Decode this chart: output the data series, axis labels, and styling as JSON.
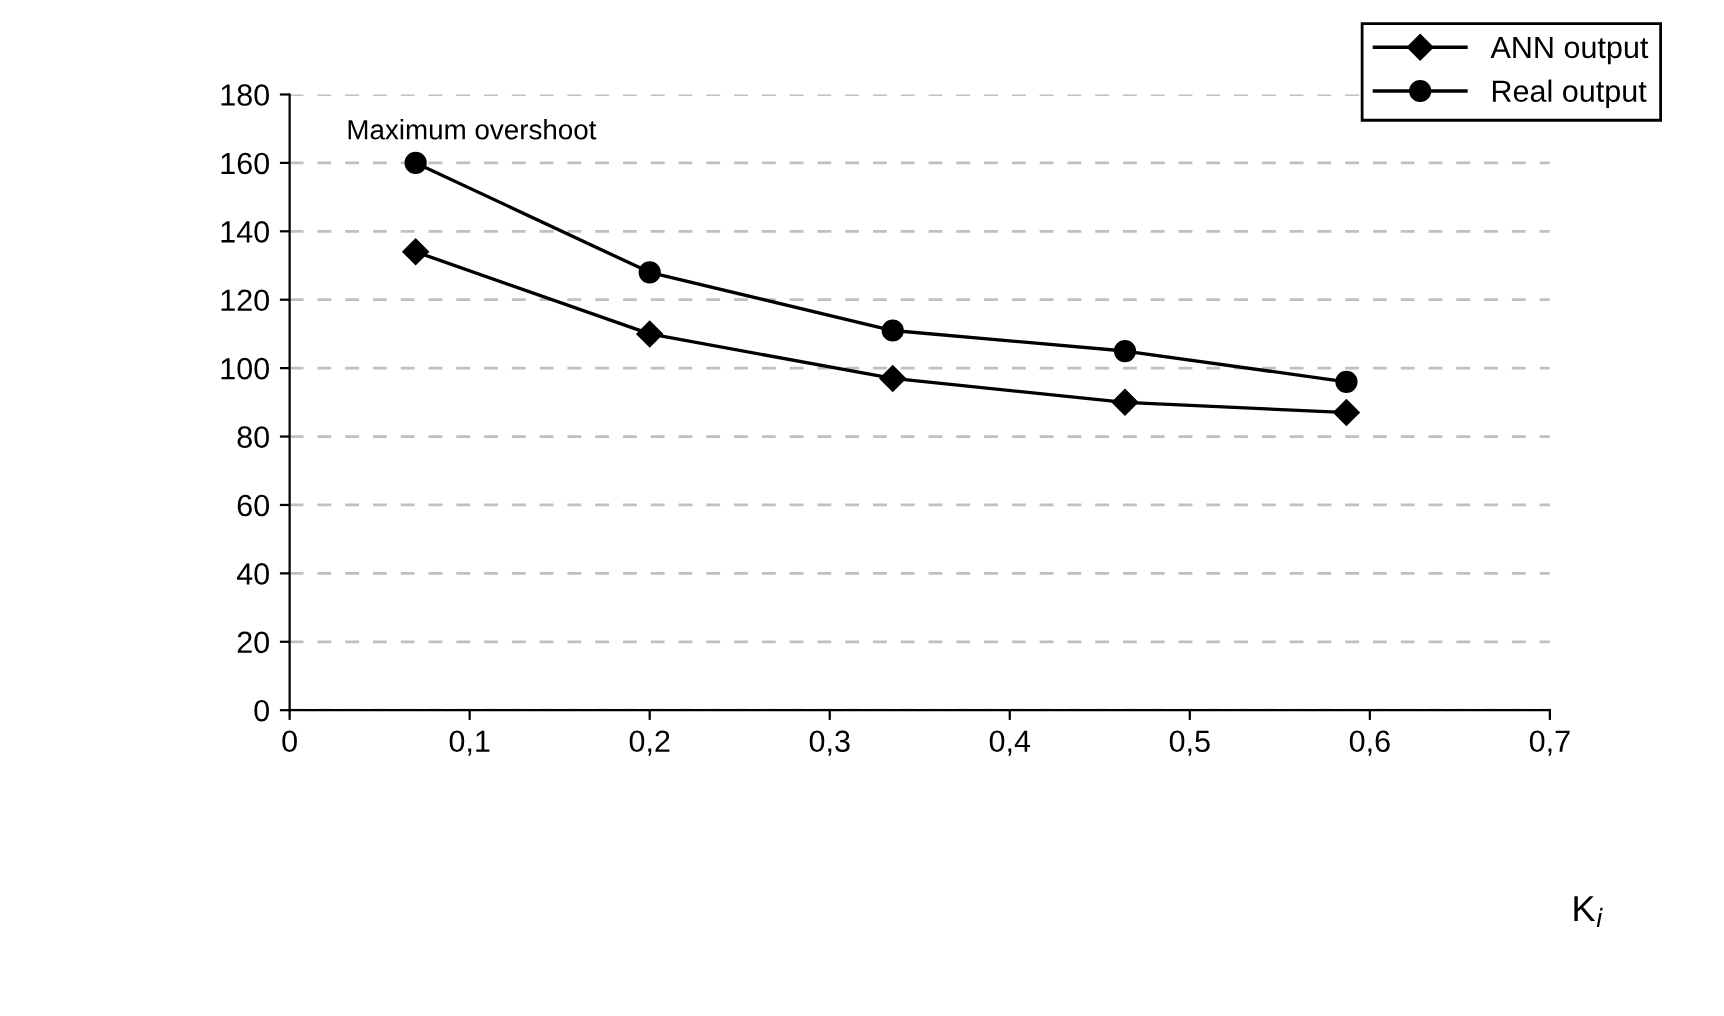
{
  "chart_data": {
    "type": "line",
    "xlabel": "K$_{i}$",
    "annotations": [
      "Maximum overshoot"
    ],
    "xlim": [
      0,
      0.7
    ],
    "xticks": [
      0,
      {
        "value": 0.1,
        "label": "0,1"
      },
      {
        "value": 0.2,
        "label": "0,2"
      },
      {
        "value": 0.3,
        "label": "0,3"
      },
      {
        "value": 0.4,
        "label": "0,4"
      },
      {
        "value": 0.5,
        "label": "0,5"
      },
      {
        "value": 0.6,
        "label": "0,6"
      },
      {
        "value": 0.7,
        "label": "0,7"
      }
    ],
    "ylim": [
      0,
      180
    ],
    "yticks": [
      0,
      20,
      40,
      60,
      80,
      100,
      120,
      140,
      160,
      180
    ],
    "x": [
      0.07,
      0.2,
      0.335,
      0.464,
      0.587
    ],
    "series": [
      {
        "name": "ANN output",
        "color": "#000000",
        "marker": "diamond",
        "values": [
          134,
          110,
          97,
          90,
          87
        ]
      },
      {
        "name": "Real output",
        "color": "#000000",
        "marker": "circle",
        "values": [
          160,
          128,
          111,
          105,
          96
        ]
      }
    ],
    "grid": "y",
    "legend": "top right",
    "line_style": "solid"
  }
}
